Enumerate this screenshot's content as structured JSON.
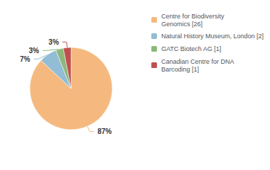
{
  "chart_data": {
    "type": "pie",
    "categories": [
      "Centre for Biodiversity\nGenomics [26]",
      "Natural History Museum, London [2]",
      "GATC Biotech AG [1]",
      "Canadian Centre for DNA\nBarcoding [1]"
    ],
    "values": [
      87,
      7,
      3,
      3
    ],
    "value_labels": [
      "87%",
      "7%",
      "3%",
      "3%"
    ],
    "colors": [
      "#f5b97f",
      "#92bdd4",
      "#8db87a",
      "#c0504d"
    ],
    "data_labels": true,
    "legend": "upper right"
  }
}
